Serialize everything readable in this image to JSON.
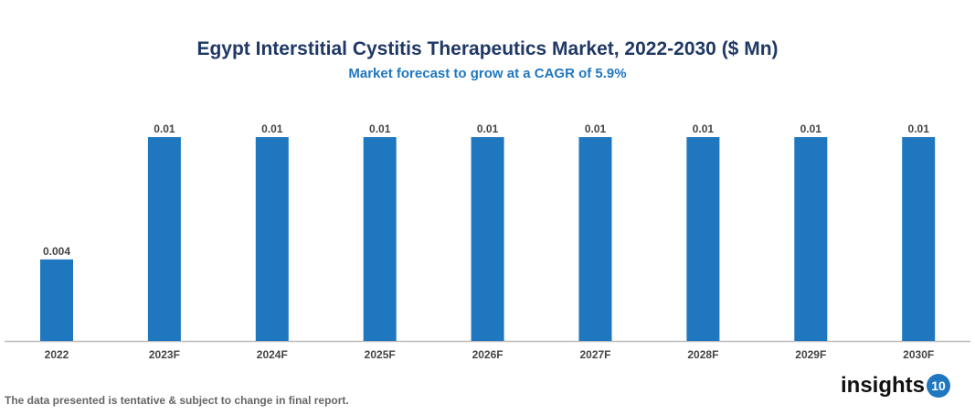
{
  "chart_data": {
    "type": "bar",
    "title": "Egypt Interstitial Cystitis Therapeutics Market, 2022-2030 ($ Mn)",
    "subtitle": "Market forecast to grow at a CAGR of 5.9%",
    "categories": [
      "2022",
      "2023F",
      "2024F",
      "2025F",
      "2026F",
      "2027F",
      "2028F",
      "2029F",
      "2030F"
    ],
    "values": [
      0.004,
      0.01,
      0.01,
      0.01,
      0.01,
      0.01,
      0.01,
      0.01,
      0.01
    ],
    "data_labels": [
      "0.004",
      "0.01",
      "0.01",
      "0.01",
      "0.01",
      "0.01",
      "0.01",
      "0.01",
      "0.01"
    ],
    "xlabel": "",
    "ylabel": "",
    "ylim": [
      0,
      0.01
    ],
    "grid": false,
    "bar_color": "#1f77c0"
  },
  "footer": {
    "note": "The data presented is tentative & subject to change in final report."
  },
  "logo": {
    "text": "insights",
    "badge": "10"
  }
}
